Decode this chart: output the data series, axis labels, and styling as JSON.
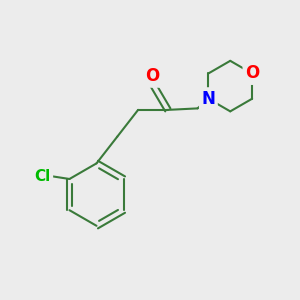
{
  "background_color": "#ececec",
  "bond_color": "#3a7a3a",
  "bond_width": 1.5,
  "atom_colors": {
    "O": "#ff0000",
    "N": "#0000ff",
    "Cl": "#00bb00",
    "C": "#000000"
  },
  "font_size_atom": 11,
  "figsize": [
    3.0,
    3.0
  ],
  "dpi": 100
}
